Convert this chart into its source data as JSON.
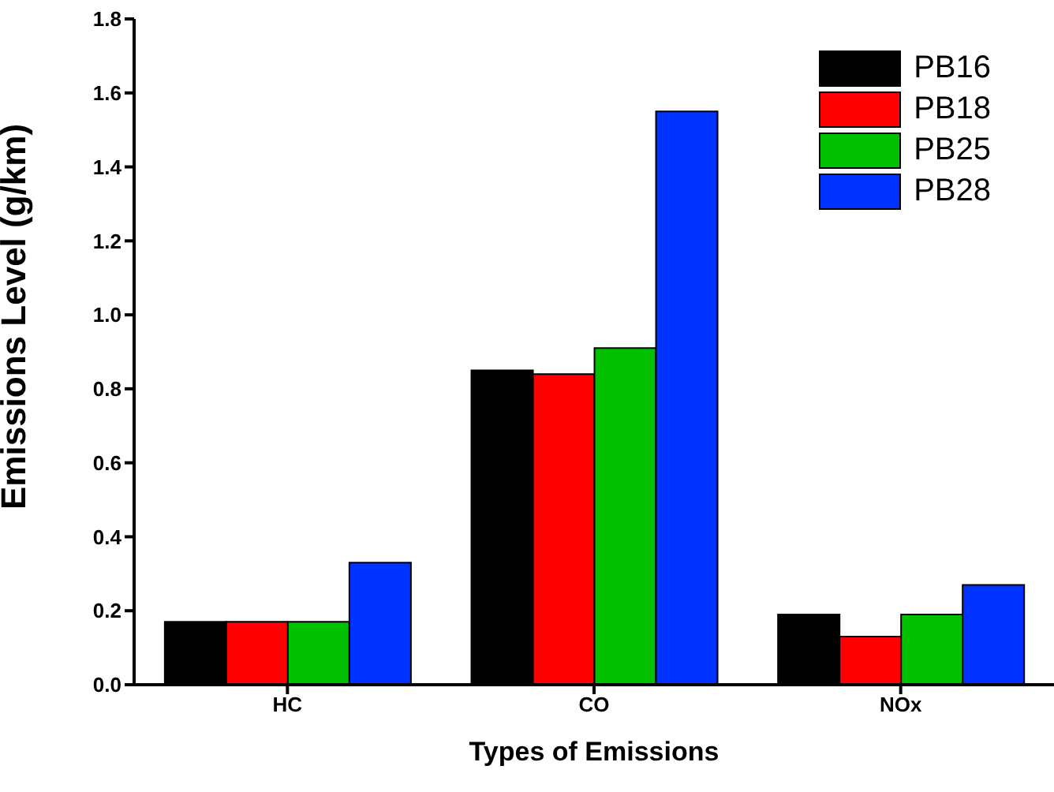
{
  "chart_data": {
    "type": "bar",
    "xlabel": "Types of Emissions",
    "ylabel": "Emissions Level (g/km)",
    "categories": [
      "HC",
      "CO",
      "NOx"
    ],
    "series": [
      {
        "name": "PB16",
        "color": "#000000",
        "values": [
          0.17,
          0.85,
          0.19
        ]
      },
      {
        "name": "PB18",
        "color": "#ff0000",
        "values": [
          0.17,
          0.84,
          0.13
        ]
      },
      {
        "name": "PB25",
        "color": "#00c000",
        "values": [
          0.17,
          0.91,
          0.19
        ]
      },
      {
        "name": "PB28",
        "color": "#0033ff",
        "values": [
          0.33,
          1.55,
          0.27
        ]
      }
    ],
    "ylim": [
      0,
      1.8
    ],
    "yticks": [
      {
        "value": 0,
        "label": "0.0"
      },
      0.2,
      0.4,
      0.6,
      0.8,
      {
        "value": 1,
        "label": "1.0"
      },
      1.2,
      1.4,
      1.6,
      1.8
    ],
    "grid": false,
    "legend": "top right"
  }
}
